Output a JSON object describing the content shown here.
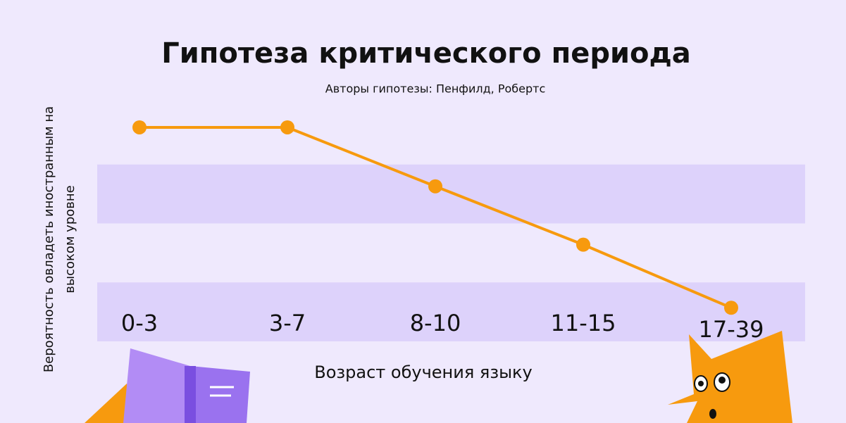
{
  "chart_data": {
    "type": "line",
    "title": "Гипотеза критического периода",
    "subtitle": "Авторы гипотезы: Пенфилд, Робертс",
    "y_label": "Вероятность овладеть иностранным на высоком уровне",
    "x_label": "Возраст обучения языку",
    "categories": [
      "0-3",
      "3-7",
      "8-10",
      "11-15",
      "17-39"
    ],
    "values": [
      3.63,
      3.63,
      2.63,
      1.64,
      0.57
    ],
    "color": "#f79a0e",
    "ylim": [
      0,
      4
    ],
    "band_color": "#ddd2fb"
  }
}
